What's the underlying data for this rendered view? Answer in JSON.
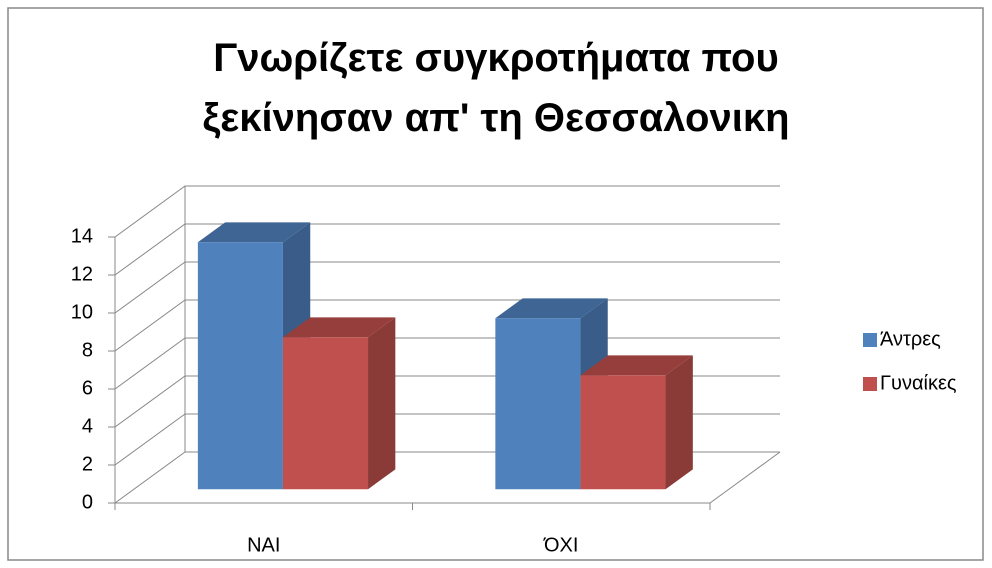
{
  "chart_data": {
    "type": "bar3d",
    "title": "Γνωρίζετε συγκροτήματα που ξεκίνησαν απ' τη Θεσσαλονικη",
    "categories": [
      "ΝΑΙ",
      "ΌΧΙ"
    ],
    "series": [
      {
        "name": "Άντρες",
        "color": "#4f81bd",
        "values": [
          13,
          9
        ]
      },
      {
        "name": "Γυναίκες",
        "color": "#c0504d",
        "values": [
          8,
          6
        ]
      }
    ],
    "ylim": [
      0,
      14
    ],
    "yticks": [
      0,
      2,
      4,
      6,
      8,
      10,
      12,
      14
    ],
    "grid": true,
    "legend": "right"
  }
}
